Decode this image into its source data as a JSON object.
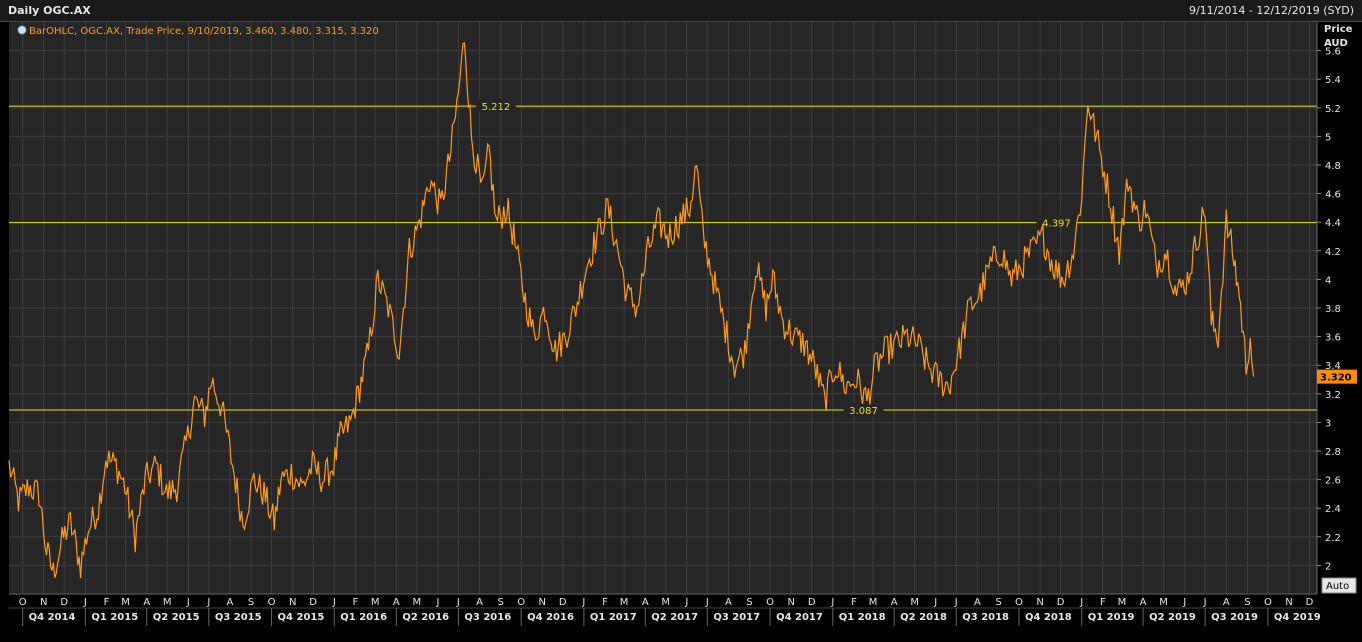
{
  "window": {
    "title": "Daily OGC.AX",
    "date_range": "9/11/2014 - 12/12/2019 (SYD)"
  },
  "legend": {
    "text": "BarOHLC, OGC.AX, Trade Price, 9/10/2019, 3.460, 3.480, 3.315, 3.320",
    "icon": "circle-icon"
  },
  "axis": {
    "y_title_line1": "Price",
    "y_title_line2": "AUD",
    "auto_button": "Auto"
  },
  "colors": {
    "background": "#262626",
    "grid": "#3d3d3d",
    "price_line": "#ff9a1a",
    "hlines": "#e6e600",
    "last_price_badge": "#ff8c00"
  },
  "chart_data": {
    "type": "line",
    "title": "Daily OGC.AX",
    "ylabel": "Price AUD",
    "ylim": [
      1.8,
      5.8
    ],
    "yticks": [
      2,
      2.2,
      2.4,
      2.6,
      2.8,
      3,
      3.2,
      3.4,
      3.6,
      3.8,
      4,
      4.2,
      4.4,
      4.6,
      4.8,
      5,
      5.2,
      5.4,
      5.6
    ],
    "month_labels": [
      "O",
      "N",
      "D",
      "J",
      "F",
      "M",
      "A",
      "M",
      "J",
      "J",
      "A",
      "S",
      "O",
      "N",
      "D",
      "J",
      "F",
      "M",
      "A",
      "M",
      "J",
      "J",
      "A",
      "S",
      "O",
      "N",
      "D",
      "J",
      "F",
      "M",
      "A",
      "M",
      "J",
      "J",
      "A",
      "S",
      "O",
      "N",
      "D",
      "J",
      "F",
      "M",
      "A",
      "M",
      "J",
      "J",
      "A",
      "S",
      "O",
      "N",
      "D",
      "J",
      "F",
      "M",
      "A",
      "M",
      "J",
      "J",
      "A",
      "S",
      "O",
      "N",
      "D"
    ],
    "quarter_labels": [
      "Q4 2014",
      "Q1 2015",
      "Q2 2015",
      "Q3 2015",
      "Q4 2015",
      "Q1 2016",
      "Q2 2016",
      "Q3 2016",
      "Q4 2016",
      "Q1 2017",
      "Q2 2017",
      "Q3 2017",
      "Q4 2017",
      "Q1 2018",
      "Q2 2018",
      "Q3 2018",
      "Q4 2018",
      "Q1 2019",
      "Q2 2019",
      "Q3 2019",
      "Q4 2019"
    ],
    "hlines": [
      {
        "value": 5.212,
        "label": "5.212"
      },
      {
        "value": 4.397,
        "label": "4.397"
      },
      {
        "value": 3.087,
        "label": "3.087"
      }
    ],
    "last_price": {
      "value": 3.32,
      "label": "3.320"
    },
    "series": [
      {
        "points": [
          [
            "2014-09-11",
            2.7
          ],
          [
            "2014-09-25",
            2.45
          ],
          [
            "2014-10-10",
            2.55
          ],
          [
            "2014-10-25",
            2.5
          ],
          [
            "2014-11-05",
            2.1
          ],
          [
            "2014-11-15",
            1.95
          ],
          [
            "2014-11-30",
            2.2
          ],
          [
            "2014-12-10",
            2.3
          ],
          [
            "2014-12-25",
            2.0
          ],
          [
            "2015-01-05",
            2.25
          ],
          [
            "2015-01-20",
            2.4
          ],
          [
            "2015-01-31",
            2.75
          ],
          [
            "2015-02-15",
            2.7
          ],
          [
            "2015-02-28",
            2.55
          ],
          [
            "2015-03-15",
            2.2
          ],
          [
            "2015-03-30",
            2.6
          ],
          [
            "2015-04-15",
            2.7
          ],
          [
            "2015-04-30",
            2.5
          ],
          [
            "2015-05-15",
            2.55
          ],
          [
            "2015-05-31",
            2.9
          ],
          [
            "2015-06-10",
            3.15
          ],
          [
            "2015-06-25",
            3.05
          ],
          [
            "2015-07-05",
            3.3
          ],
          [
            "2015-07-20",
            3.1
          ],
          [
            "2015-08-05",
            2.7
          ],
          [
            "2015-08-20",
            2.3
          ],
          [
            "2015-09-05",
            2.6
          ],
          [
            "2015-09-20",
            2.5
          ],
          [
            "2015-10-05",
            2.3
          ],
          [
            "2015-10-15",
            2.6
          ],
          [
            "2015-10-30",
            2.65
          ],
          [
            "2015-11-15",
            2.55
          ],
          [
            "2015-11-30",
            2.7
          ],
          [
            "2015-12-15",
            2.6
          ],
          [
            "2015-12-31",
            2.7
          ],
          [
            "2016-01-10",
            2.9
          ],
          [
            "2016-01-25",
            3.0
          ],
          [
            "2016-02-05",
            3.2
          ],
          [
            "2016-02-20",
            3.5
          ],
          [
            "2016-03-05",
            4.0
          ],
          [
            "2016-03-20",
            3.8
          ],
          [
            "2016-04-05",
            3.5
          ],
          [
            "2016-04-20",
            4.2
          ],
          [
            "2016-05-05",
            4.4
          ],
          [
            "2016-05-20",
            4.7
          ],
          [
            "2016-06-05",
            4.5
          ],
          [
            "2016-06-20",
            4.9
          ],
          [
            "2016-07-01",
            5.3
          ],
          [
            "2016-07-10",
            5.7
          ],
          [
            "2016-07-20",
            5.0
          ],
          [
            "2016-08-05",
            4.6
          ],
          [
            "2016-08-15",
            4.9
          ],
          [
            "2016-08-25",
            4.4
          ],
          [
            "2016-09-10",
            4.5
          ],
          [
            "2016-09-20",
            4.3
          ],
          [
            "2016-10-05",
            3.9
          ],
          [
            "2016-10-20",
            3.6
          ],
          [
            "2016-11-05",
            3.8
          ],
          [
            "2016-11-20",
            3.5
          ],
          [
            "2016-12-05",
            3.6
          ],
          [
            "2016-12-20",
            3.8
          ],
          [
            "2017-01-05",
            4.1
          ],
          [
            "2017-01-20",
            4.3
          ],
          [
            "2017-02-05",
            4.5
          ],
          [
            "2017-02-20",
            4.2
          ],
          [
            "2017-03-05",
            3.9
          ],
          [
            "2017-03-20",
            3.8
          ],
          [
            "2017-04-05",
            4.2
          ],
          [
            "2017-04-20",
            4.4
          ],
          [
            "2017-05-05",
            4.3
          ],
          [
            "2017-05-20",
            4.4
          ],
          [
            "2017-06-05",
            4.5
          ],
          [
            "2017-06-15",
            4.8
          ],
          [
            "2017-06-25",
            4.3
          ],
          [
            "2017-07-10",
            4.0
          ],
          [
            "2017-07-25",
            3.7
          ],
          [
            "2017-08-10",
            3.4
          ],
          [
            "2017-08-25",
            3.5
          ],
          [
            "2017-09-10",
            4.1
          ],
          [
            "2017-09-25",
            3.8
          ],
          [
            "2017-10-05",
            4.0
          ],
          [
            "2017-10-20",
            3.7
          ],
          [
            "2017-11-05",
            3.6
          ],
          [
            "2017-11-20",
            3.55
          ],
          [
            "2017-12-05",
            3.4
          ],
          [
            "2017-12-20",
            3.15
          ],
          [
            "2018-01-05",
            3.4
          ],
          [
            "2018-01-20",
            3.25
          ],
          [
            "2018-02-05",
            3.3
          ],
          [
            "2018-02-20",
            3.15
          ],
          [
            "2018-03-05",
            3.4
          ],
          [
            "2018-03-20",
            3.5
          ],
          [
            "2018-04-05",
            3.55
          ],
          [
            "2018-04-20",
            3.6
          ],
          [
            "2018-05-05",
            3.55
          ],
          [
            "2018-05-20",
            3.4
          ],
          [
            "2018-06-05",
            3.3
          ],
          [
            "2018-06-20",
            3.25
          ],
          [
            "2018-07-05",
            3.5
          ],
          [
            "2018-07-20",
            3.8
          ],
          [
            "2018-08-05",
            3.9
          ],
          [
            "2018-08-20",
            4.1
          ],
          [
            "2018-09-05",
            4.2
          ],
          [
            "2018-09-20",
            4.0
          ],
          [
            "2018-10-05",
            4.1
          ],
          [
            "2018-10-20",
            4.2
          ],
          [
            "2018-11-05",
            4.3
          ],
          [
            "2018-11-20",
            4.1
          ],
          [
            "2018-12-05",
            4.0
          ],
          [
            "2018-12-20",
            4.2
          ],
          [
            "2019-01-01",
            4.6
          ],
          [
            "2019-01-10",
            5.25
          ],
          [
            "2019-01-25",
            4.95
          ],
          [
            "2019-02-10",
            4.6
          ],
          [
            "2019-02-25",
            4.2
          ],
          [
            "2019-03-10",
            4.7
          ],
          [
            "2019-03-25",
            4.4
          ],
          [
            "2019-04-05",
            4.5
          ],
          [
            "2019-04-20",
            4.1
          ],
          [
            "2019-05-05",
            4.2
          ],
          [
            "2019-05-20",
            3.9
          ],
          [
            "2019-06-05",
            4.0
          ],
          [
            "2019-06-20",
            4.3
          ],
          [
            "2019-07-01",
            4.5
          ],
          [
            "2019-07-10",
            3.7
          ],
          [
            "2019-07-20",
            3.6
          ],
          [
            "2019-08-01",
            4.4
          ],
          [
            "2019-08-10",
            4.2
          ],
          [
            "2019-08-20",
            3.9
          ],
          [
            "2019-08-30",
            3.4
          ],
          [
            "2019-09-05",
            3.6
          ],
          [
            "2019-09-10",
            3.32
          ]
        ]
      }
    ]
  }
}
